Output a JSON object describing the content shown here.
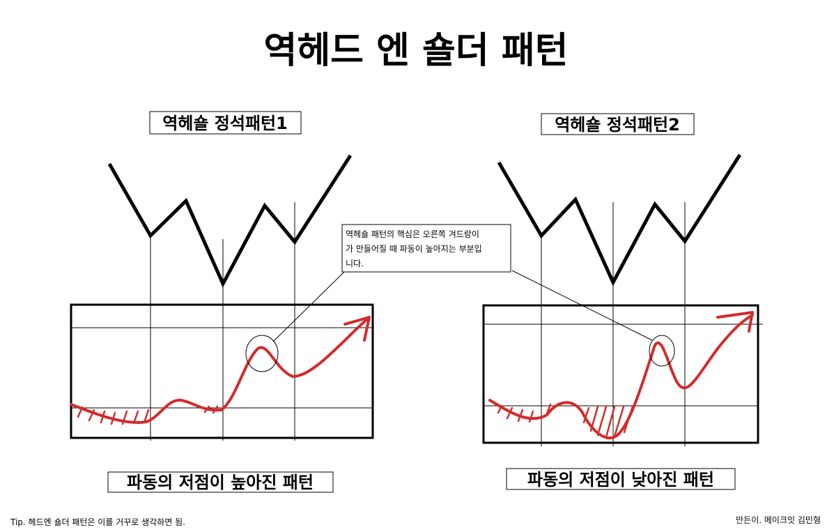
{
  "header": {
    "title": "역헤드 엔 숄더 패턴"
  },
  "panels": [
    {
      "title": "역헤숄 정석패턴1",
      "caption": "파동의 저점이 높아진 패턴"
    },
    {
      "title": "역헤숄 정석패턴2",
      "caption": "파동의 저점이 낮아진 패턴"
    }
  ],
  "callout": {
    "lines": [
      "역헤숄 패턴의 핵심은 오른쪽 겨드랑이",
      "가 만들어질 때 파동이 높아지는 부분입",
      "니다."
    ]
  },
  "footer": {
    "tip": "Tip. 헤드엔 숄더 패턴은 이를 거꾸로 생각하면 됨.",
    "credit": "만든이. 메이크잇 김민형"
  }
}
